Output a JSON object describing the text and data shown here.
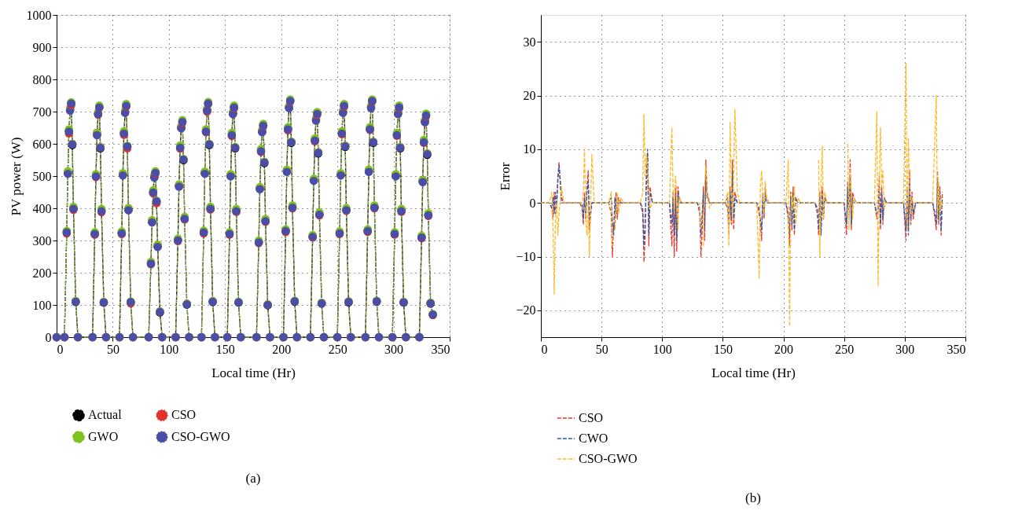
{
  "chart_data": [
    {
      "type": "line",
      "xlabel": "Local time (Hr)",
      "ylabel": "PV power (W)",
      "xlim": [
        0,
        350
      ],
      "xticks": [
        0,
        50,
        100,
        150,
        200,
        250,
        300,
        350
      ],
      "ylim": [
        0,
        1000
      ],
      "yticks": [
        0,
        100,
        200,
        300,
        400,
        500,
        600,
        700,
        800,
        900,
        1000
      ],
      "grid": true,
      "legend": "bottom",
      "marker": "circle",
      "annotations": [
        "(a)"
      ],
      "x": [
        0,
        7,
        9,
        10,
        11,
        12,
        13,
        14,
        15,
        17,
        19,
        32,
        34,
        35,
        36,
        37,
        38,
        39,
        40,
        42,
        44,
        56,
        58,
        59,
        60,
        61,
        62,
        63,
        64,
        66,
        68,
        82,
        84,
        85,
        86,
        87,
        88,
        89,
        90,
        92,
        94,
        106,
        108,
        109,
        110,
        111,
        112,
        113,
        114,
        116,
        118,
        129,
        131,
        132,
        133,
        134,
        135,
        136,
        137,
        139,
        141,
        152,
        154,
        155,
        156,
        157,
        158,
        159,
        160,
        162,
        164,
        178,
        180,
        181,
        182,
        183,
        184,
        185,
        186,
        188,
        190,
        202,
        204,
        205,
        206,
        207,
        208,
        209,
        210,
        212,
        214,
        226,
        228,
        229,
        230,
        231,
        232,
        233,
        234,
        236,
        238,
        250,
        252,
        253,
        254,
        255,
        256,
        257,
        258,
        260,
        262,
        275,
        277,
        278,
        279,
        280,
        281,
        282,
        283,
        285,
        287,
        299,
        301,
        302,
        303,
        304,
        305,
        306,
        307,
        309,
        311,
        323,
        325,
        326,
        327,
        328,
        329,
        330,
        331,
        333,
        335
      ],
      "series": [
        {
          "name": "Actual",
          "color": "#000000",
          "line_style": "dashed",
          "values": [
            0,
            0,
            327,
            509,
            640,
            705,
            727,
            596,
            400,
            109,
            0,
            0,
            322,
            501,
            629,
            694,
            715,
            586,
            393,
            107,
            0,
            0,
            324,
            504,
            634,
            698,
            720,
            590,
            396,
            108,
            0,
            0,
            230,
            358,
            451,
            497,
            512,
            420,
            282,
            77,
            0,
            0,
            302,
            469,
            590,
            650,
            670,
            549,
            369,
            101,
            0,
            0,
            327,
            509,
            640,
            705,
            727,
            596,
            400,
            109,
            0,
            0,
            322,
            501,
            629,
            694,
            715,
            586,
            393,
            107,
            0,
            0,
            296,
            461,
            579,
            638,
            658,
            540,
            362,
            99,
            0,
            0,
            331,
            515,
            647,
            713,
            735,
            603,
            404,
            110,
            0,
            0,
            313,
            487,
            612,
            674,
            695,
            570,
            382,
            104,
            0,
            0,
            324,
            504,
            634,
            698,
            720,
            590,
            396,
            108,
            0,
            0,
            331,
            515,
            647,
            713,
            735,
            603,
            404,
            110,
            0,
            0,
            322,
            501,
            629,
            694,
            715,
            586,
            393,
            107,
            0,
            0,
            311,
            483,
            607,
            669,
            690,
            566,
            380,
            104,
            70
          ]
        },
        {
          "name": "CSO",
          "color": "#e3312b",
          "line_style": "dotted",
          "values": [
            0,
            0,
            322,
            512,
            632,
            710,
            720,
            600,
            395,
            112,
            0,
            0,
            318,
            497,
            635,
            690,
            712,
            590,
            388,
            110,
            0,
            0,
            320,
            508,
            628,
            702,
            716,
            586,
            400,
            105,
            0,
            0,
            226,
            362,
            446,
            500,
            508,
            416,
            286,
            80,
            0,
            0,
            298,
            473,
            585,
            654,
            666,
            552,
            365,
            104,
            0,
            0,
            322,
            512,
            636,
            700,
            724,
            600,
            396,
            112,
            0,
            0,
            318,
            505,
            624,
            698,
            711,
            590,
            389,
            110,
            0,
            0,
            292,
            465,
            575,
            642,
            655,
            544,
            358,
            102,
            0,
            0,
            326,
            518,
            642,
            716,
            731,
            606,
            400,
            113,
            0,
            0,
            309,
            490,
            608,
            678,
            690,
            574,
            378,
            107,
            0,
            0,
            320,
            508,
            630,
            702,
            716,
            594,
            392,
            111,
            0,
            0,
            327,
            518,
            643,
            717,
            731,
            606,
            400,
            113,
            0,
            0,
            318,
            505,
            625,
            698,
            711,
            590,
            389,
            110,
            0,
            0,
            307,
            487,
            603,
            673,
            686,
            570,
            376,
            107,
            68
          ]
        },
        {
          "name": "GWO",
          "color": "#7dc31c",
          "line_style": "dashed",
          "values": [
            0,
            0,
            330,
            515,
            645,
            710,
            729,
            600,
            405,
            112,
            0,
            0,
            326,
            506,
            634,
            699,
            719,
            590,
            398,
            110,
            0,
            0,
            328,
            509,
            639,
            703,
            724,
            594,
            401,
            111,
            0,
            0,
            234,
            363,
            456,
            502,
            515,
            424,
            287,
            80,
            0,
            0,
            306,
            474,
            595,
            655,
            674,
            553,
            374,
            104,
            0,
            0,
            331,
            514,
            645,
            710,
            730,
            600,
            405,
            112,
            0,
            0,
            326,
            506,
            634,
            699,
            719,
            590,
            398,
            110,
            0,
            0,
            300,
            466,
            584,
            643,
            662,
            544,
            367,
            102,
            0,
            0,
            335,
            520,
            652,
            718,
            738,
            607,
            409,
            113,
            0,
            0,
            317,
            492,
            617,
            679,
            699,
            574,
            387,
            107,
            0,
            0,
            328,
            509,
            639,
            703,
            724,
            594,
            401,
            111,
            0,
            0,
            335,
            520,
            652,
            718,
            738,
            607,
            409,
            113,
            0,
            0,
            326,
            506,
            634,
            699,
            719,
            590,
            398,
            110,
            0,
            0,
            315,
            488,
            612,
            674,
            694,
            570,
            385,
            107,
            72
          ]
        },
        {
          "name": "CSO-GWO",
          "color": "#4a4ea8",
          "line_style": "dotted",
          "values": [
            0,
            0,
            325,
            507,
            638,
            703,
            725,
            598,
            398,
            110,
            0,
            0,
            320,
            499,
            627,
            692,
            713,
            588,
            391,
            108,
            0,
            0,
            322,
            502,
            632,
            696,
            718,
            592,
            394,
            109,
            0,
            0,
            228,
            356,
            449,
            495,
            510,
            422,
            280,
            78,
            0,
            0,
            300,
            467,
            588,
            648,
            668,
            551,
            367,
            102,
            0,
            0,
            325,
            507,
            638,
            703,
            725,
            598,
            398,
            110,
            0,
            0,
            320,
            499,
            627,
            692,
            713,
            588,
            391,
            108,
            0,
            0,
            294,
            459,
            577,
            636,
            656,
            542,
            360,
            100,
            0,
            0,
            329,
            513,
            645,
            711,
            733,
            605,
            402,
            111,
            0,
            0,
            311,
            485,
            610,
            672,
            693,
            572,
            380,
            105,
            0,
            0,
            322,
            502,
            632,
            696,
            718,
            592,
            394,
            109,
            0,
            0,
            329,
            513,
            645,
            711,
            733,
            605,
            402,
            111,
            0,
            0,
            320,
            499,
            627,
            692,
            713,
            588,
            391,
            108,
            0,
            0,
            309,
            481,
            605,
            667,
            688,
            568,
            378,
            105,
            70
          ]
        }
      ]
    },
    {
      "type": "line",
      "xlabel": "Local time (Hr)",
      "ylabel": "Error",
      "xlim": [
        0,
        350
      ],
      "xticks": [
        0,
        50,
        100,
        150,
        200,
        250,
        300,
        350
      ],
      "ylim": [
        -25,
        35
      ],
      "yticks": [
        -20,
        -10,
        0,
        10,
        20,
        30
      ],
      "grid": true,
      "legend": "bottom",
      "annotations": [
        "(b)"
      ],
      "x": [
        0,
        7,
        9,
        10,
        11,
        12,
        13,
        14,
        15,
        17,
        19,
        32,
        34,
        35,
        36,
        37,
        38,
        39,
        40,
        42,
        44,
        56,
        58,
        59,
        60,
        61,
        62,
        63,
        64,
        66,
        68,
        82,
        84,
        85,
        86,
        87,
        88,
        89,
        90,
        92,
        94,
        106,
        108,
        109,
        110,
        111,
        112,
        113,
        114,
        116,
        118,
        129,
        131,
        132,
        133,
        134,
        135,
        136,
        137,
        139,
        141,
        152,
        154,
        155,
        156,
        157,
        158,
        159,
        160,
        162,
        164,
        178,
        180,
        181,
        182,
        183,
        184,
        185,
        186,
        188,
        190,
        202,
        204,
        205,
        206,
        207,
        208,
        209,
        210,
        212,
        214,
        226,
        228,
        229,
        230,
        231,
        232,
        233,
        234,
        236,
        238,
        250,
        252,
        253,
        254,
        255,
        256,
        257,
        258,
        260,
        262,
        275,
        277,
        278,
        279,
        280,
        281,
        282,
        283,
        285,
        287,
        299,
        301,
        302,
        303,
        304,
        305,
        306,
        307,
        309,
        311,
        323,
        325,
        326,
        327,
        328,
        329,
        330,
        331
      ],
      "series": [
        {
          "name": "CSO",
          "color": "#e8352a",
          "line_style": "dashed",
          "values": [
            0,
            0,
            -1,
            -3,
            2,
            -2,
            0,
            5,
            7.5,
            1,
            0,
            0,
            -1,
            -4,
            2,
            -3,
            3,
            6,
            -5,
            0,
            0,
            0,
            -2,
            -10,
            -4,
            -5,
            2,
            -3,
            1,
            0,
            0,
            0,
            -2,
            -11,
            -6,
            5,
            9,
            -8,
            3,
            0,
            0,
            0,
            -8,
            2,
            -10,
            3,
            -9,
            3,
            1,
            0,
            0,
            0,
            -2,
            -10,
            -5,
            3,
            -7,
            8,
            2,
            0,
            0,
            0,
            -1,
            -6,
            3,
            -4,
            8,
            -5,
            2,
            0,
            0,
            0,
            -2,
            -4,
            -7,
            2,
            -3,
            3,
            1,
            0,
            0,
            0,
            -3,
            -8,
            2,
            -5,
            3,
            -6,
            1,
            0,
            0,
            0,
            -2,
            -6,
            2,
            -5,
            3,
            -3,
            1,
            0,
            0,
            0,
            -6,
            4,
            -3,
            8,
            -5,
            2,
            1,
            0,
            0,
            0,
            -3,
            -2,
            5,
            -5,
            3,
            -4,
            1,
            0,
            0,
            0,
            -7,
            3,
            -5,
            6,
            -4,
            2,
            -3,
            0,
            0,
            0,
            -3,
            -5,
            6,
            -4,
            3,
            -6,
            2
          ]
        },
        {
          "name": "CWO",
          "color": "#2a5caa",
          "line_style": "dashed",
          "values": [
            0,
            0,
            -1,
            1,
            -2,
            2,
            -1,
            4,
            7,
            0,
            0,
            0,
            0,
            -3,
            1,
            -2,
            2,
            4,
            -3,
            0,
            0,
            0,
            1,
            -3,
            -6,
            1,
            -2,
            1,
            0,
            0,
            0,
            0,
            -1,
            -8,
            -3,
            4,
            10,
            -6,
            2,
            0,
            0,
            0,
            -4,
            1,
            -6,
            2,
            -7,
            2,
            0,
            0,
            0,
            0,
            -1,
            -6,
            -2,
            2,
            -5,
            5,
            1,
            0,
            0,
            0,
            1,
            -4,
            2,
            -3,
            6,
            -3,
            1,
            0,
            0,
            0,
            -1,
            -3,
            -5,
            1,
            -2,
            2,
            0,
            0,
            0,
            0,
            -2,
            -6,
            1,
            -4,
            2,
            -5,
            1,
            0,
            0,
            0,
            -1,
            -5,
            1,
            -6,
            2,
            -2,
            1,
            0,
            0,
            0,
            -4,
            3,
            -2,
            5,
            -4,
            1,
            0,
            0,
            0,
            0,
            -2,
            -1,
            3,
            -4,
            2,
            -3,
            1,
            0,
            0,
            0,
            -5,
            2,
            -6,
            4,
            -3,
            1,
            -2,
            0,
            0,
            0,
            -2,
            -4,
            4,
            -3,
            2,
            -5,
            1
          ]
        },
        {
          "name": "CSO-GWO",
          "color": "#fdb926",
          "line_style": "dashed",
          "values": [
            0,
            0,
            2,
            -4,
            -17,
            -3,
            0,
            -6,
            -2,
            3,
            0,
            0,
            0,
            2,
            10,
            -3,
            -6,
            0,
            -10,
            9,
            0,
            0,
            2,
            -8,
            null,
            -5,
            -2,
            2,
            -2,
            1,
            0,
            0,
            2,
            16.5,
            5,
            9,
            7,
            3,
            -1,
            0,
            0,
            0,
            14,
            3,
            -2,
            5,
            2,
            -5,
            1,
            0,
            0,
            0,
            0,
            -5,
            null,
            -8,
            3,
            7,
            2,
            -1,
            0,
            0,
            2,
            -8,
            15,
            4,
            -4,
            6,
            17.4,
            2,
            0,
            0,
            -14,
            3,
            6,
            1,
            -2,
            4,
            1,
            0,
            0,
            0,
            8,
            -23,
            -3,
            2,
            -1,
            3,
            -4,
            1,
            0,
            0,
            null,
            8,
            -10,
            4,
            10.5,
            -3,
            2,
            0,
            0,
            0,
            null,
            11,
            -5,
            6,
            2,
            -3,
            1,
            0,
            0,
            0,
            17,
            -15.5,
            4,
            14,
            3,
            6,
            -1,
            0,
            0,
            0,
            26,
            -5,
            12,
            3,
            -2,
            1,
            0,
            0,
            0,
            0,
            13,
            20,
            -3,
            4,
            -2,
            1,
            -1
          ]
        }
      ]
    }
  ]
}
